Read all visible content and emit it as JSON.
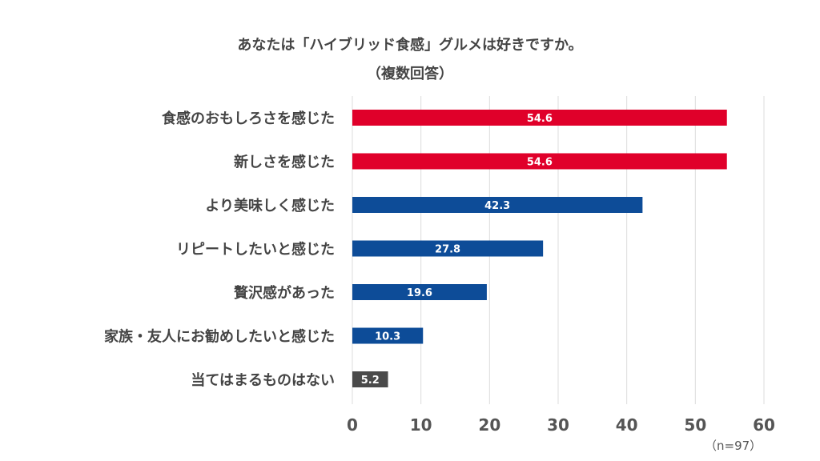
{
  "chart_data": {
    "type": "bar",
    "orientation": "horizontal",
    "title": [
      "あなたは「ハイブリッド食感」グルメは好きですか。",
      "（複数回答）"
    ],
    "categories": [
      "食感のおもしろさを感じた",
      "新しさを感じた",
      "より美味しく感じた",
      "リピートしたいと感じた",
      "贅沢感があった",
      "家族・友人にお勧めしたいと感じた",
      "当てはまるものはない"
    ],
    "values": [
      54.6,
      54.6,
      42.3,
      27.8,
      19.6,
      10.3,
      5.2
    ],
    "data_labels": [
      "54.6",
      "54.6",
      "42.3",
      "27.8",
      "19.6",
      "10.3",
      "5.2"
    ],
    "colors": [
      "#E0002A",
      "#E0002A",
      "#0D4C98",
      "#0D4C98",
      "#0D4C98",
      "#0D4C98",
      "#4A4A4A"
    ],
    "xlim": [
      0,
      60
    ],
    "xticks": [
      "0",
      "10",
      "20",
      "30",
      "40",
      "50",
      "60"
    ],
    "grid": true,
    "note": "（n=97）"
  }
}
